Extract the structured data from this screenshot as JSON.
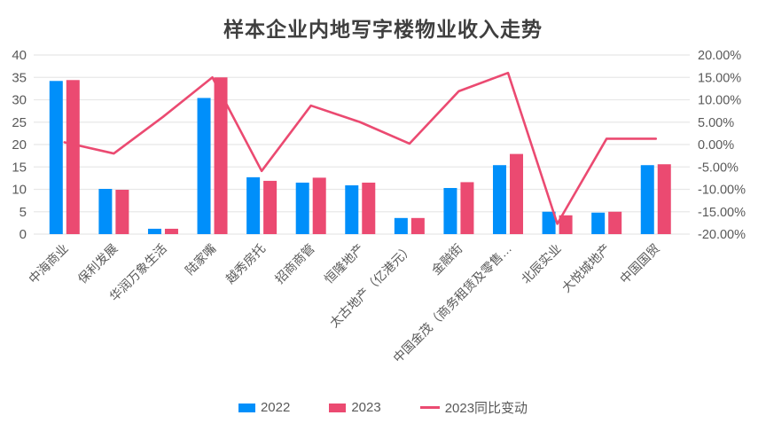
{
  "chart_data": {
    "type": "bar+line-combo",
    "title": "样本企业内地写字楼物业收入走势",
    "categories": [
      "中海商业",
      "保利发展",
      "华润万象生活",
      "陆家嘴",
      "越秀房托",
      "招商商管",
      "恒隆地产",
      "太古地产（亿港元）",
      "金融街",
      "中国金茂（商务租赁及零售…",
      "北辰实业",
      "大悦城地产",
      "中国国贸"
    ],
    "series": [
      {
        "name": "2022",
        "type": "bar",
        "axis": "left",
        "values": [
          34.2,
          10.1,
          1.2,
          30.4,
          12.7,
          11.5,
          10.9,
          3.6,
          10.3,
          15.4,
          5.0,
          4.8,
          15.4
        ]
      },
      {
        "name": "2023",
        "type": "bar",
        "axis": "left",
        "values": [
          34.4,
          9.9,
          1.2,
          35.0,
          11.9,
          12.6,
          11.5,
          3.6,
          11.6,
          17.9,
          4.2,
          5.0,
          15.6
        ]
      },
      {
        "name": "2023同比变动",
        "type": "line",
        "axis": "right",
        "values_pct": [
          0.5,
          -2.0,
          6.2,
          15.0,
          -5.9,
          8.7,
          5.0,
          0.2,
          11.9,
          16.0,
          -17.7,
          1.3,
          1.3
        ]
      }
    ],
    "left_axis": {
      "range": [
        0,
        40
      ],
      "tick_labels_top_down": [
        "40",
        "35",
        "30",
        "25",
        "20",
        "15",
        "10",
        "5",
        "0"
      ]
    },
    "right_axis": {
      "range_pct": [
        -20,
        20
      ],
      "tick_labels_top_down": [
        "20.00%",
        "15.00%",
        "10.00%",
        "5.00%",
        "0.00%",
        "-5.00%",
        "-10.00%",
        "-15.00%",
        "-20.00%"
      ]
    },
    "grid": true,
    "legend_position": "bottom"
  },
  "colors": {
    "bar_2022": "#008FFA",
    "bar_2023": "#EB4A71",
    "trend_line": "#EB4A71",
    "gridline": "#E8E8E8",
    "axis_text": "#595959",
    "title_text": "#3F3F3F"
  }
}
